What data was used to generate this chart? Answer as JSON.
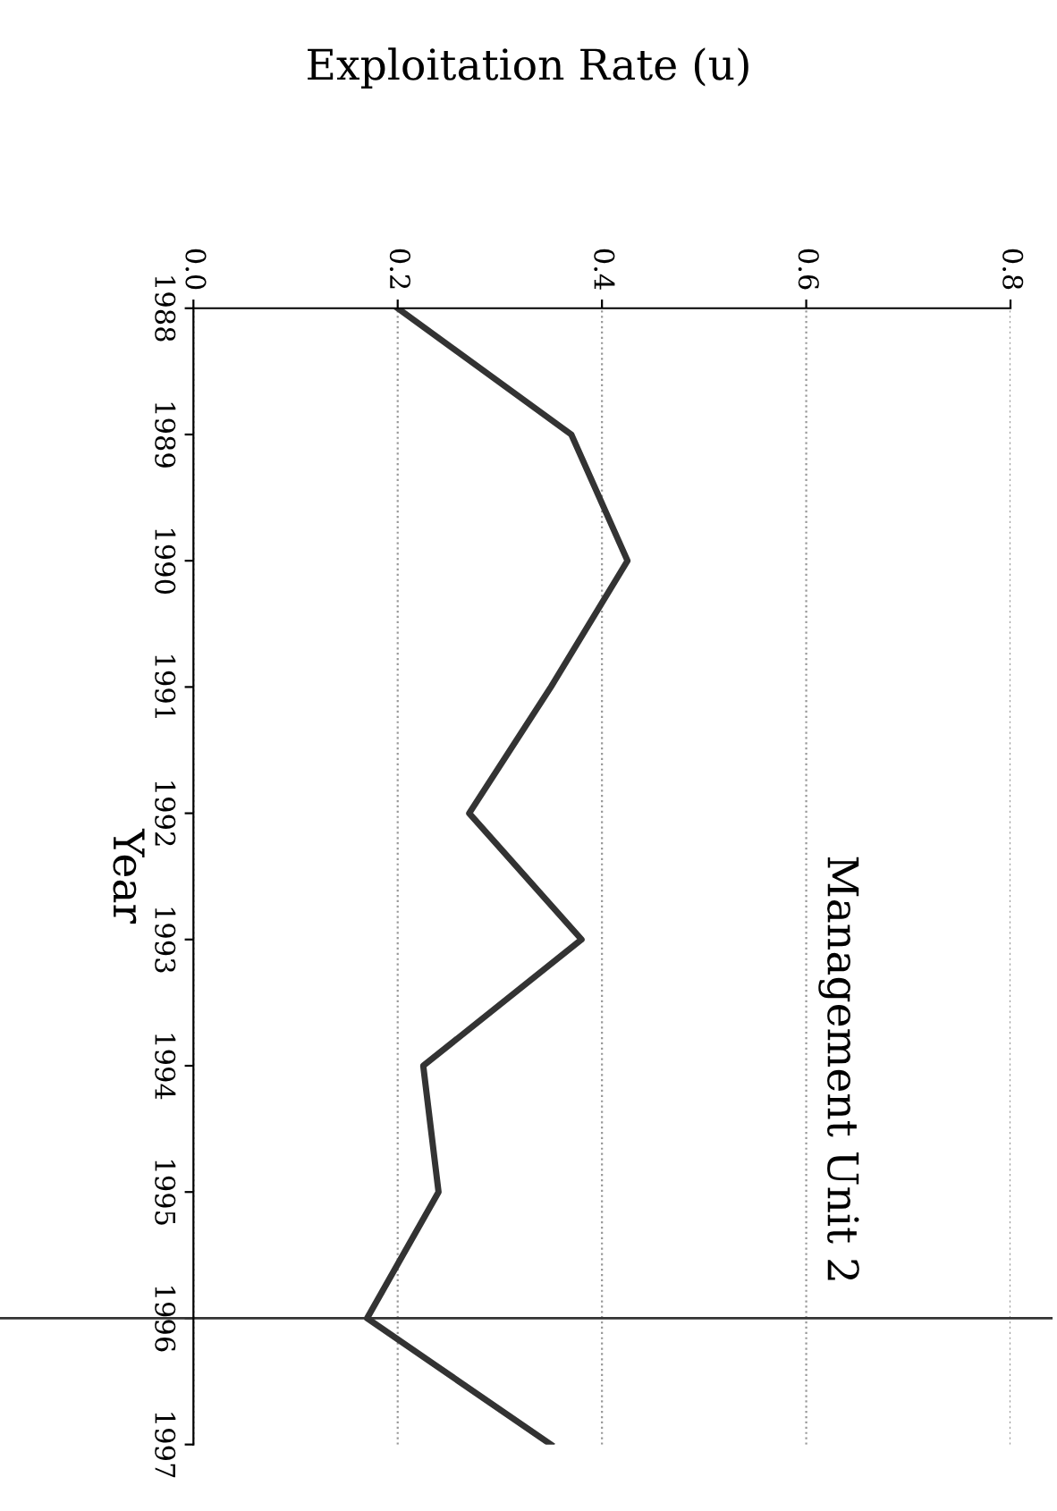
{
  "chart_data": {
    "type": "line",
    "title": "Management Unit 2",
    "xlabel": "Exploitation Rate (u)",
    "ylabel": "Year",
    "series": [
      {
        "color": "#333333",
        "x": [
          0.2,
          0.37,
          0.425,
          0.35,
          0.27,
          0.38,
          0.225,
          0.24,
          0.17,
          0.35
        ],
        "values": [
          1988,
          1989,
          1990,
          1991,
          1992,
          1993,
          1994,
          1995,
          1996,
          1997
        ]
      }
    ],
    "ylim": [
      1997,
      1988
    ],
    "yticks": [
      1988,
      1989,
      1990,
      1991,
      1992,
      1993,
      1994,
      1995,
      1996,
      1997
    ],
    "xlim": [
      0,
      0.8
    ],
    "xticks": [
      {
        "value": 0,
        "label": "0.0"
      },
      {
        "value": 0.2,
        "label": "0.2"
      },
      {
        "value": 0.4,
        "label": "0.4"
      },
      {
        "value": 0.6,
        "label": "0.6"
      },
      {
        "value": 0.8,
        "label": "0.8"
      }
    ],
    "ref_lines": [
      {
        "axis": "y",
        "value": 1996,
        "color": "#333333"
      }
    ],
    "grid": "x",
    "marker": "none",
    "line_style": "solid",
    "legend": false
  }
}
